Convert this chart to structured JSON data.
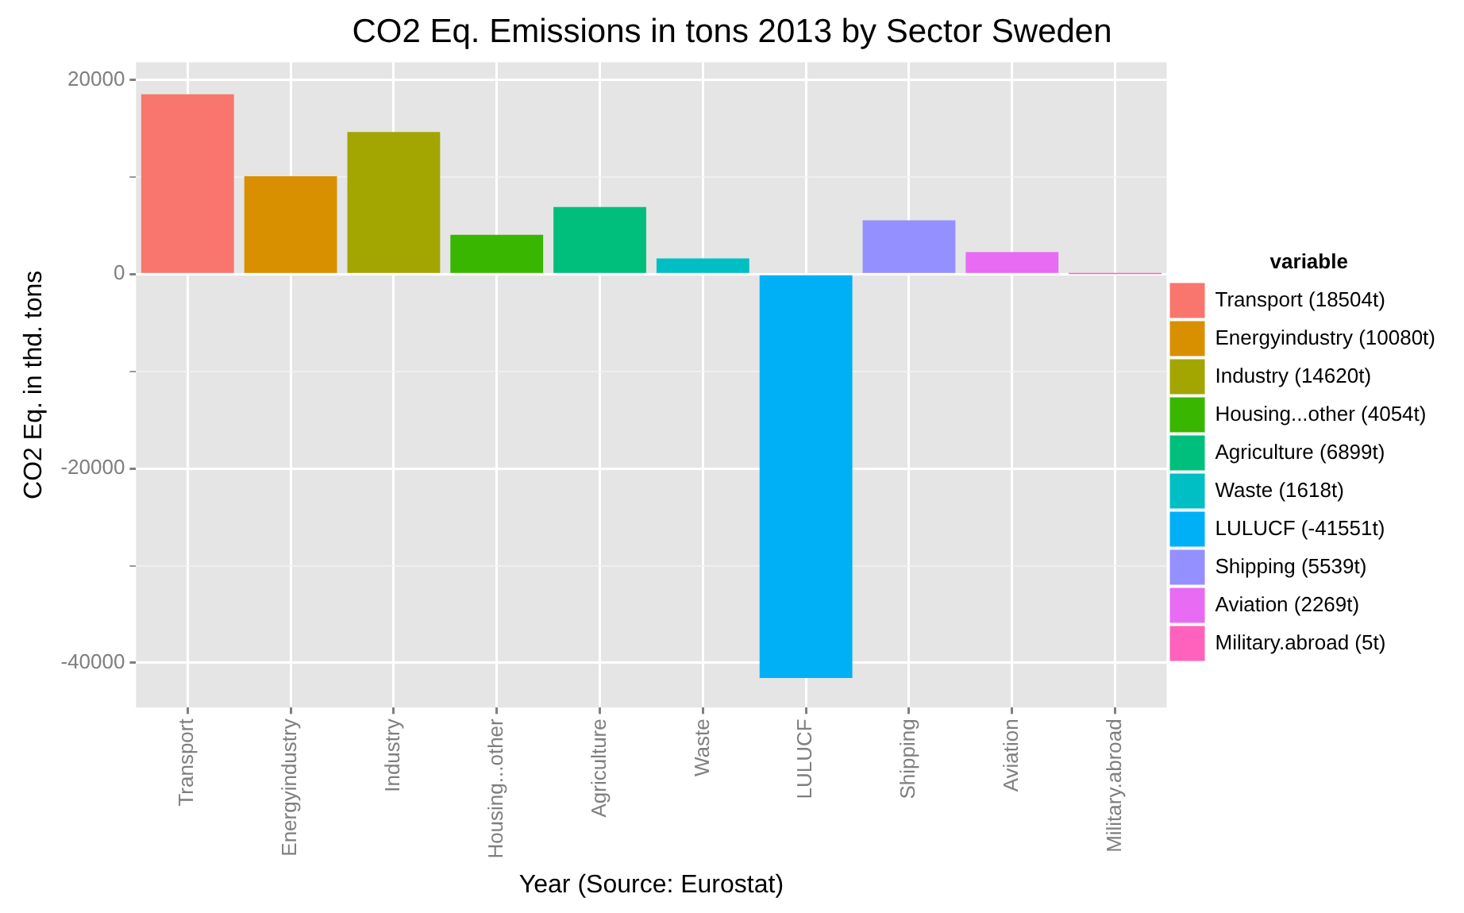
{
  "chart_data": {
    "type": "bar",
    "title": "CO2 Eq. Emissions in tons 2013 by Sector Sweden",
    "xlabel": "Year (Source: Eurostat)",
    "ylabel": "CO2 Eq. in thd. tons",
    "legend_title": "variable",
    "categories": [
      "Transport",
      "Energyindustry",
      "Industry",
      "Housing...other",
      "Agriculture",
      "Waste",
      "LULUCF",
      "Shipping",
      "Aviation",
      "Military.abroad"
    ],
    "series": [
      {
        "name": "Transport (18504t)",
        "color": "#f8766d",
        "values": [
          18504,
          null,
          null,
          null,
          null,
          null,
          null,
          null,
          null,
          null
        ]
      },
      {
        "name": "Energyindustry (10080t)",
        "color": "#d89000",
        "values": [
          null,
          10080,
          null,
          null,
          null,
          null,
          null,
          null,
          null,
          null
        ]
      },
      {
        "name": "Industry (14620t)",
        "color": "#a3a500",
        "values": [
          null,
          null,
          14620,
          null,
          null,
          null,
          null,
          null,
          null,
          null
        ]
      },
      {
        "name": "Housing...other (4054t)",
        "color": "#39b600",
        "values": [
          null,
          null,
          null,
          4054,
          null,
          null,
          null,
          null,
          null,
          null
        ]
      },
      {
        "name": "Agriculture (6899t)",
        "color": "#00bf7d",
        "values": [
          null,
          null,
          null,
          null,
          6899,
          null,
          null,
          null,
          null,
          null
        ]
      },
      {
        "name": "Waste (1618t)",
        "color": "#00bfc4",
        "values": [
          null,
          null,
          null,
          null,
          null,
          1618,
          null,
          null,
          null,
          null
        ]
      },
      {
        "name": "LULUCF (-41551t)",
        "color": "#00b0f6",
        "values": [
          null,
          null,
          null,
          null,
          null,
          null,
          -41551,
          null,
          null,
          null
        ]
      },
      {
        "name": "Shipping (5539t)",
        "color": "#9590ff",
        "values": [
          null,
          null,
          null,
          null,
          null,
          null,
          null,
          5539,
          null,
          null
        ]
      },
      {
        "name": "Aviation (2269t)",
        "color": "#e76bf3",
        "values": [
          null,
          null,
          null,
          null,
          null,
          null,
          null,
          null,
          2269,
          null
        ]
      },
      {
        "name": "Military.abroad (5t)",
        "color": "#ff62bc",
        "values": [
          null,
          null,
          null,
          null,
          null,
          null,
          null,
          null,
          null,
          5
        ]
      }
    ],
    "ylim": [
      -44600,
      21800
    ],
    "yticks": [
      {
        "value": -40000,
        "label": "-40000"
      },
      {
        "value": -30000,
        "label": null
      },
      {
        "value": -20000,
        "label": "-20000"
      },
      {
        "value": -10000,
        "label": null
      },
      0,
      {
        "value": 10000,
        "label": null
      },
      20000
    ],
    "grid": true,
    "legend": "right"
  }
}
